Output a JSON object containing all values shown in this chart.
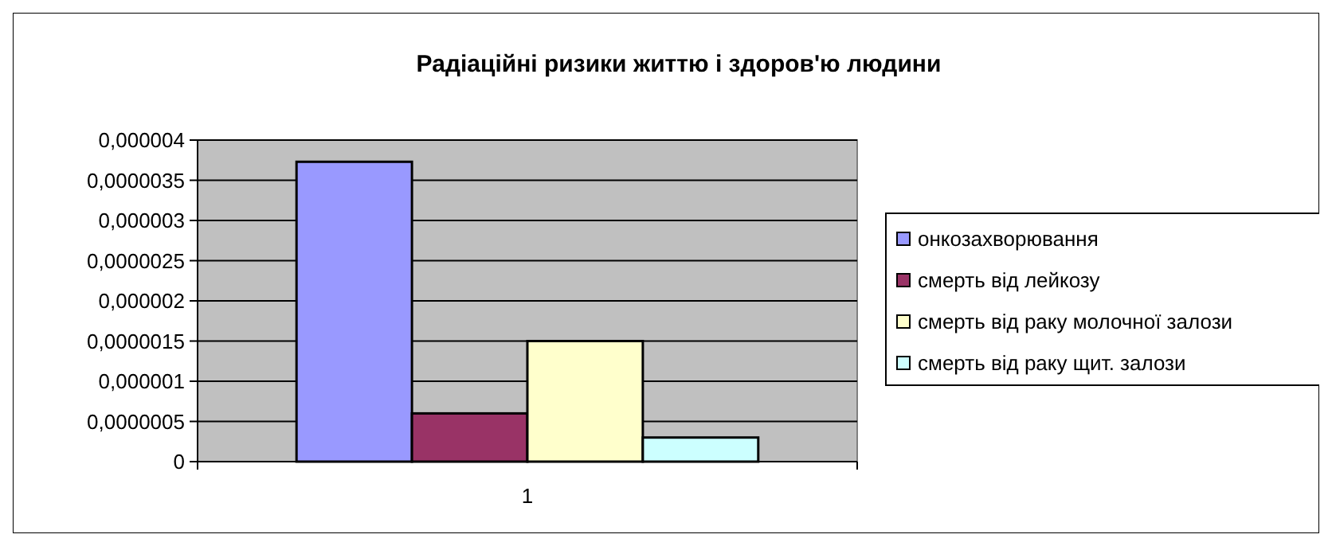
{
  "chart_data": {
    "type": "bar",
    "title": "Радіаційні ризики життю і здоров'ю людини",
    "categories": [
      "1"
    ],
    "series": [
      {
        "name": "онкозахворювання",
        "color": "#9999ff",
        "values": [
          3.73e-06
        ]
      },
      {
        "name": "смерть від лейкозу",
        "color": "#993366",
        "values": [
          6e-07
        ]
      },
      {
        "name": "смерть від раку молочної залози",
        "color": "#ffffcc",
        "values": [
          1.5e-06
        ]
      },
      {
        "name": "смерть від раку щит. залози",
        "color": "#ccffff",
        "values": [
          3e-07
        ]
      }
    ],
    "ylim": [
      0,
      4e-06
    ],
    "yticks": [
      {
        "value": 0,
        "label": "0"
      },
      {
        "value": 5e-07,
        "label": "0,0000005"
      },
      {
        "value": 1e-06,
        "label": "0,000001"
      },
      {
        "value": 1.5e-06,
        "label": "0,0000015"
      },
      {
        "value": 2e-06,
        "label": "0,000002"
      },
      {
        "value": 2.5e-06,
        "label": "0,0000025"
      },
      {
        "value": 3e-06,
        "label": "0,000003"
      },
      {
        "value": 3.5e-06,
        "label": "0,0000035"
      },
      {
        "value": 4e-06,
        "label": "0,000004"
      }
    ],
    "grid": "y",
    "legend": "right"
  }
}
